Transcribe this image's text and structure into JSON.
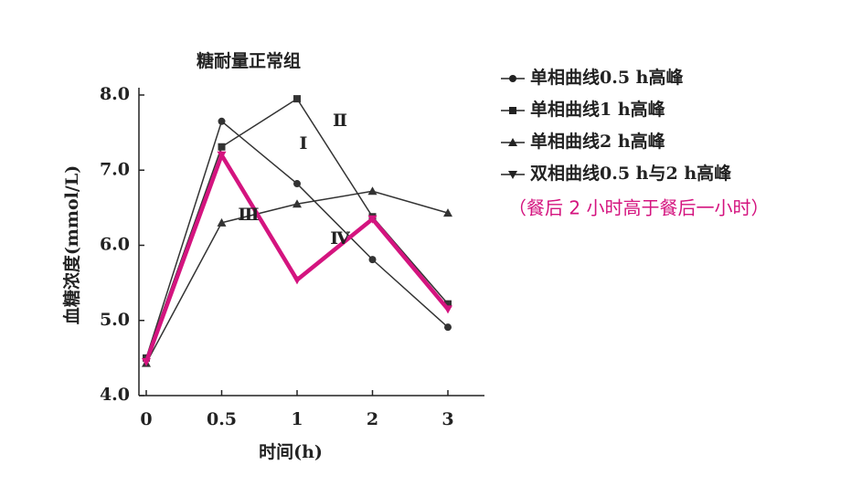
{
  "chart_data": {
    "type": "line",
    "title": "糖耐量正常组",
    "x_label": "时间(h)",
    "y_label": "血糖浓度(mmol/L)",
    "categories": [
      "0",
      "0.5",
      "1",
      "2",
      "3"
    ],
    "ylim": [
      4,
      8
    ],
    "yticks": [
      {
        "value": 4,
        "label": "4.0"
      },
      {
        "value": 5,
        "label": "5.0"
      },
      {
        "value": 6,
        "label": "6.0"
      },
      {
        "value": 7,
        "label": "7.0"
      },
      {
        "value": 8,
        "label": "8.0"
      }
    ],
    "series": [
      {
        "name": "单相曲线0.5 h高峰",
        "color": "#333333",
        "marker": "circle",
        "values": [
          4.5,
          7.65,
          6.82,
          5.81,
          4.91
        ]
      },
      {
        "name": "单相曲线1 h高峰",
        "color": "#333333",
        "marker": "square",
        "values": [
          4.5,
          7.31,
          7.95,
          6.38,
          5.22
        ]
      },
      {
        "name": "单相曲线2 h高峰",
        "color": "#333333",
        "marker": "triangle",
        "values": [
          4.43,
          6.3,
          6.55,
          6.72,
          6.43
        ]
      },
      {
        "name": "双相曲线0.5 h与2 h高峰",
        "color": "#d4147f",
        "marker": "triangle-down",
        "values": [
          4.45,
          7.2,
          5.54,
          6.35,
          5.15
        ]
      }
    ],
    "annotations": [
      "Ⅰ",
      "Ⅱ",
      "Ⅲ",
      "Ⅳ",
      "（餐后 2 小时高于餐后一小时）"
    ]
  }
}
